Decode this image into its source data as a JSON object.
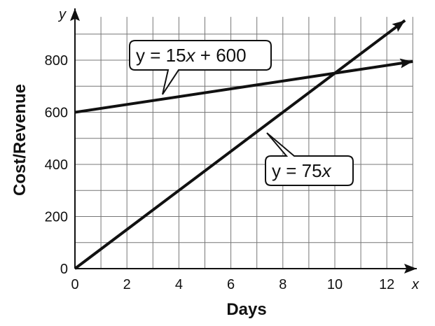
{
  "chart_data": {
    "type": "line",
    "title": "",
    "xlabel": "Days",
    "ylabel": "Cost/Revenue",
    "x_axis_var": "x",
    "y_axis_var": "y",
    "xlim": [
      0,
      13
    ],
    "ylim": [
      0,
      950
    ],
    "x_ticks": [
      0,
      2,
      4,
      6,
      8,
      10,
      12
    ],
    "y_ticks": [
      0,
      200,
      400,
      600,
      800
    ],
    "x_grid_step": 1,
    "y_grid_step": 100,
    "grid": true,
    "series": [
      {
        "equation_prefix": "y = 15",
        "equation_var": "x",
        "equation_suffix": " + 600",
        "x": [
          0,
          13
        ],
        "y": [
          600,
          795
        ]
      },
      {
        "equation_prefix": "y = 75",
        "equation_var": "x",
        "equation_suffix": "",
        "x": [
          0,
          12.7
        ],
        "y": [
          0,
          952.5
        ]
      }
    ],
    "colors": {
      "line": "#111111",
      "grid": "#777777",
      "background": "#ffffff"
    }
  }
}
